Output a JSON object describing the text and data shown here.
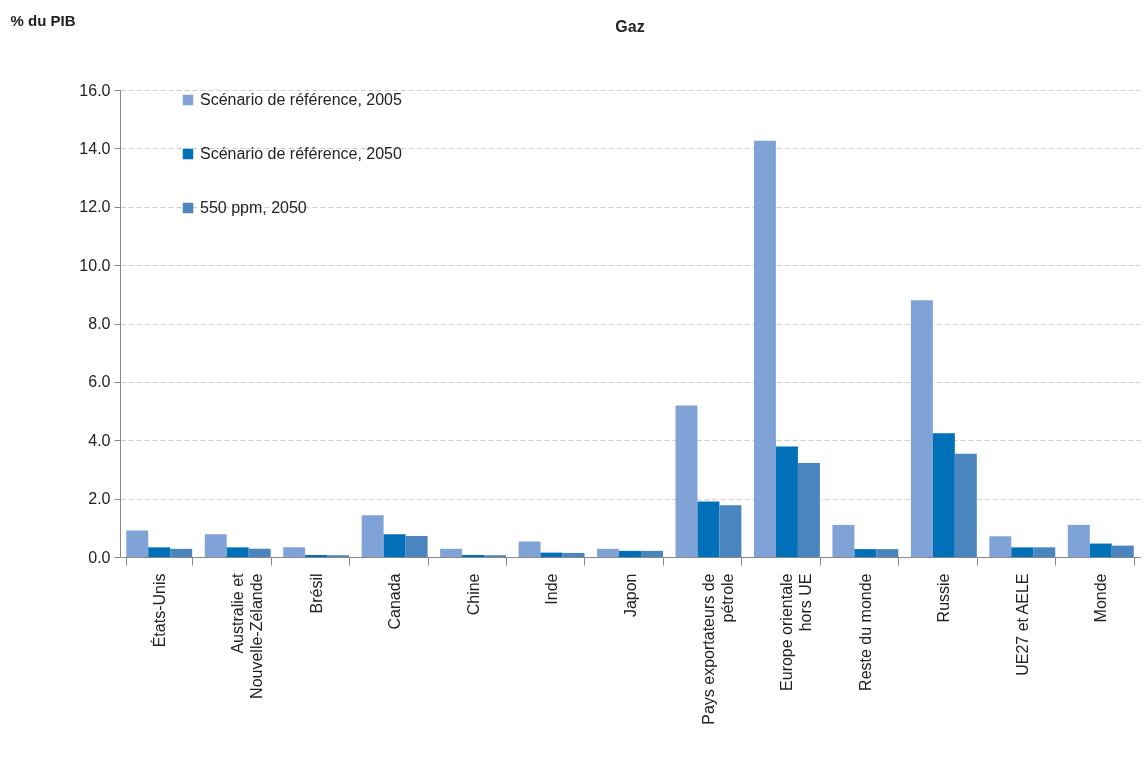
{
  "chart_data": {
    "type": "bar",
    "title": "Gaz",
    "ylabel": "% du PIB",
    "categories": [
      "États-Unis",
      "Australie et Nouvelle-Zélande",
      "Brésil",
      "Canada",
      "Chine",
      "Inde",
      "Japon",
      "Pays exportateurs de pétrole",
      "Europe orientale hors UE",
      "Reste du monde",
      "Russie",
      "UE27 et AELE",
      "Monde"
    ],
    "series": [
      {
        "name": "Scénario de référence, 2005",
        "color": "#7fa3d6",
        "values": [
          0.91,
          0.78,
          0.33,
          1.43,
          0.28,
          0.53,
          0.28,
          5.19,
          14.26,
          1.1,
          8.8,
          0.71,
          1.1
        ]
      },
      {
        "name": "Scénario de référence, 2050",
        "color": "#0070b8",
        "values": [
          0.33,
          0.33,
          0.07,
          0.78,
          0.07,
          0.15,
          0.21,
          1.9,
          3.79,
          0.27,
          4.24,
          0.33,
          0.46
        ]
      },
      {
        "name": "550 ppm, 2050",
        "color": "#4a85c0",
        "values": [
          0.28,
          0.28,
          0.06,
          0.72,
          0.06,
          0.14,
          0.21,
          1.77,
          3.22,
          0.27,
          3.54,
          0.33,
          0.39
        ]
      }
    ],
    "ylim": [
      0,
      16
    ],
    "yticks": [
      {
        "value": 0,
        "label": "0.0"
      },
      {
        "value": 2,
        "label": "2.0"
      },
      {
        "value": 4,
        "label": "4.0"
      },
      {
        "value": 6,
        "label": "6.0"
      },
      {
        "value": 8,
        "label": "8.0"
      },
      {
        "value": 10,
        "label": "10.0"
      },
      {
        "value": 12,
        "label": "12.0"
      },
      {
        "value": 14,
        "label": "14.0"
      },
      {
        "value": 16,
        "label": "16.0"
      }
    ],
    "grid": "y",
    "legend": "top left"
  }
}
